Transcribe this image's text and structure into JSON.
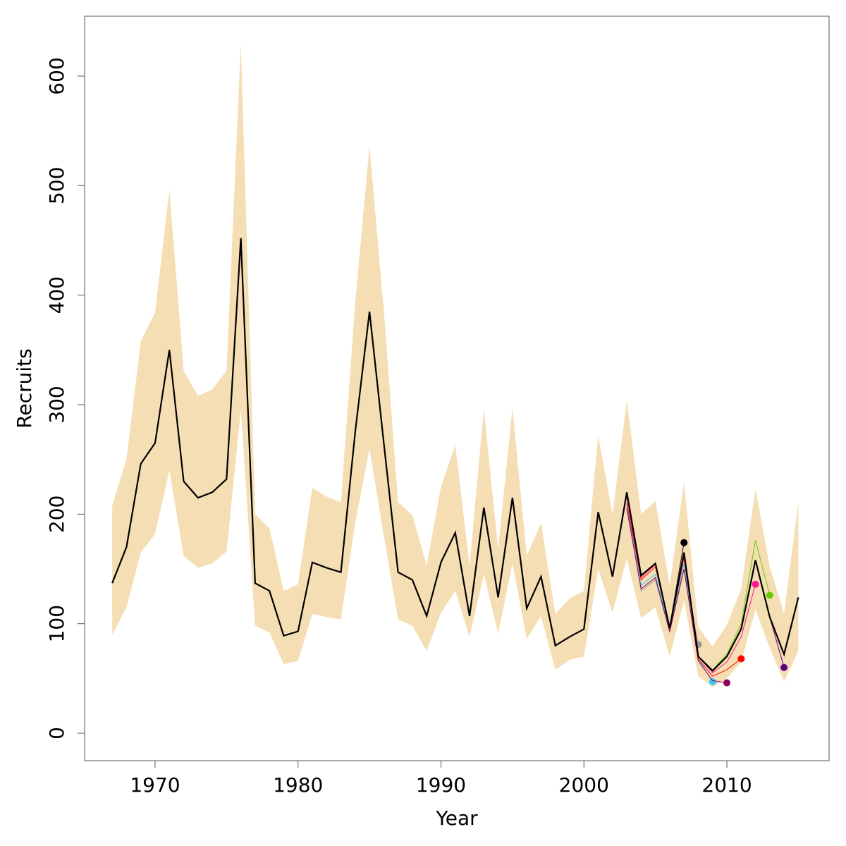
{
  "chart_data": {
    "type": "line",
    "x_label": "Year",
    "y_label": "Recruits",
    "xlim": [
      1965.07,
      2017.15
    ],
    "ylim": [
      -25.1,
      654.7
    ],
    "xticks": [
      1970,
      1980,
      1990,
      2000,
      2010
    ],
    "yticks": [
      0,
      100,
      200,
      300,
      400,
      500,
      600
    ],
    "x": [
      1967,
      1968,
      1969,
      1970,
      1971,
      1972,
      1973,
      1974,
      1975,
      1976,
      1977,
      1978,
      1979,
      1980,
      1981,
      1982,
      1983,
      1984,
      1985,
      1986,
      1987,
      1988,
      1989,
      1990,
      1991,
      1992,
      1993,
      1994,
      1995,
      1996,
      1997,
      1998,
      1999,
      2000,
      2001,
      2002,
      2003,
      2004,
      2005,
      2006,
      2007,
      2008,
      2009,
      2010,
      2011,
      2012,
      2013,
      2014,
      2015
    ],
    "band": {
      "color": "#f5deb3",
      "upper": [
        208,
        250,
        358,
        384,
        496,
        331,
        308,
        314,
        331,
        630,
        200,
        187,
        130,
        136,
        224,
        216,
        211,
        393,
        536,
        386,
        211,
        199,
        153,
        225,
        263,
        153,
        296,
        168,
        297,
        162,
        192,
        109,
        123,
        130,
        272,
        200,
        304,
        200,
        212,
        135,
        229,
        97,
        79,
        99,
        132,
        223,
        152,
        109,
        211
      ],
      "lower": [
        90,
        115,
        165,
        182,
        240,
        162,
        151,
        155,
        166,
        295,
        98,
        92,
        63,
        66,
        109,
        106,
        104,
        192,
        260,
        180,
        104,
        98,
        75,
        110,
        130,
        88,
        145,
        91,
        155,
        86,
        107,
        58,
        67,
        70,
        150,
        110,
        160,
        105,
        115,
        70,
        121,
        52,
        42,
        50,
        65,
        113,
        78,
        47,
        75
      ]
    },
    "values": [
      137,
      170,
      246,
      265,
      350,
      230,
      215,
      220,
      232,
      452,
      137,
      130,
      89,
      93,
      156,
      151,
      147,
      275,
      385,
      265,
      147,
      140,
      107,
      156,
      183,
      107,
      206,
      124,
      215,
      114,
      143,
      80,
      88,
      95,
      202,
      143,
      220,
      144,
      155,
      96,
      165,
      70,
      57,
      70,
      95,
      158,
      106,
      72,
      124
    ],
    "color": "#000000",
    "series": [
      {
        "color": "#000000",
        "x": [
          2003,
          2004,
          2005,
          2006,
          2007
        ],
        "values": [
          220,
          144,
          155,
          97,
          174
        ]
      },
      {
        "color": "#999999",
        "x": [
          2003,
          2004,
          2005,
          2006,
          2007,
          2008
        ],
        "values": [
          210,
          130,
          140,
          92,
          150,
          81
        ]
      },
      {
        "color": "#33ccff",
        "x": [
          2003,
          2004,
          2005,
          2006,
          2007,
          2008,
          2009
        ],
        "values": [
          207,
          135,
          145,
          95,
          155,
          68,
          47
        ]
      },
      {
        "color": "#8b0057",
        "x": [
          2003,
          2004,
          2005,
          2006,
          2007,
          2008,
          2009,
          2010
        ],
        "values": [
          205,
          132,
          142,
          93,
          150,
          66,
          48,
          46
        ]
      },
      {
        "color": "#ff0000",
        "x": [
          2003,
          2004,
          2005,
          2006,
          2007,
          2008,
          2009,
          2010,
          2011
        ],
        "values": [
          210,
          140,
          152,
          95,
          160,
          68,
          52,
          58,
          68
        ]
      },
      {
        "color": "#ff1493",
        "x": [
          2003,
          2004,
          2005,
          2006,
          2007,
          2008,
          2009,
          2010,
          2011,
          2012
        ],
        "values": [
          215,
          142,
          154,
          96,
          162,
          70,
          55,
          65,
          88,
          136
        ]
      },
      {
        "color": "#66cc00",
        "x": [
          2003,
          2004,
          2005,
          2006,
          2007,
          2008,
          2009,
          2010,
          2011,
          2012,
          2013
        ],
        "values": [
          218,
          144,
          155,
          97,
          165,
          70,
          58,
          72,
          100,
          176,
          126
        ]
      },
      {
        "color": "#5a0080",
        "x": [
          2003,
          2004,
          2005,
          2006,
          2007,
          2008,
          2009,
          2010,
          2011,
          2012,
          2013,
          2014
        ],
        "values": [
          219,
          144,
          155,
          96,
          165,
          70,
          57,
          70,
          95,
          158,
          106,
          60
        ]
      }
    ],
    "marker_last": true
  }
}
